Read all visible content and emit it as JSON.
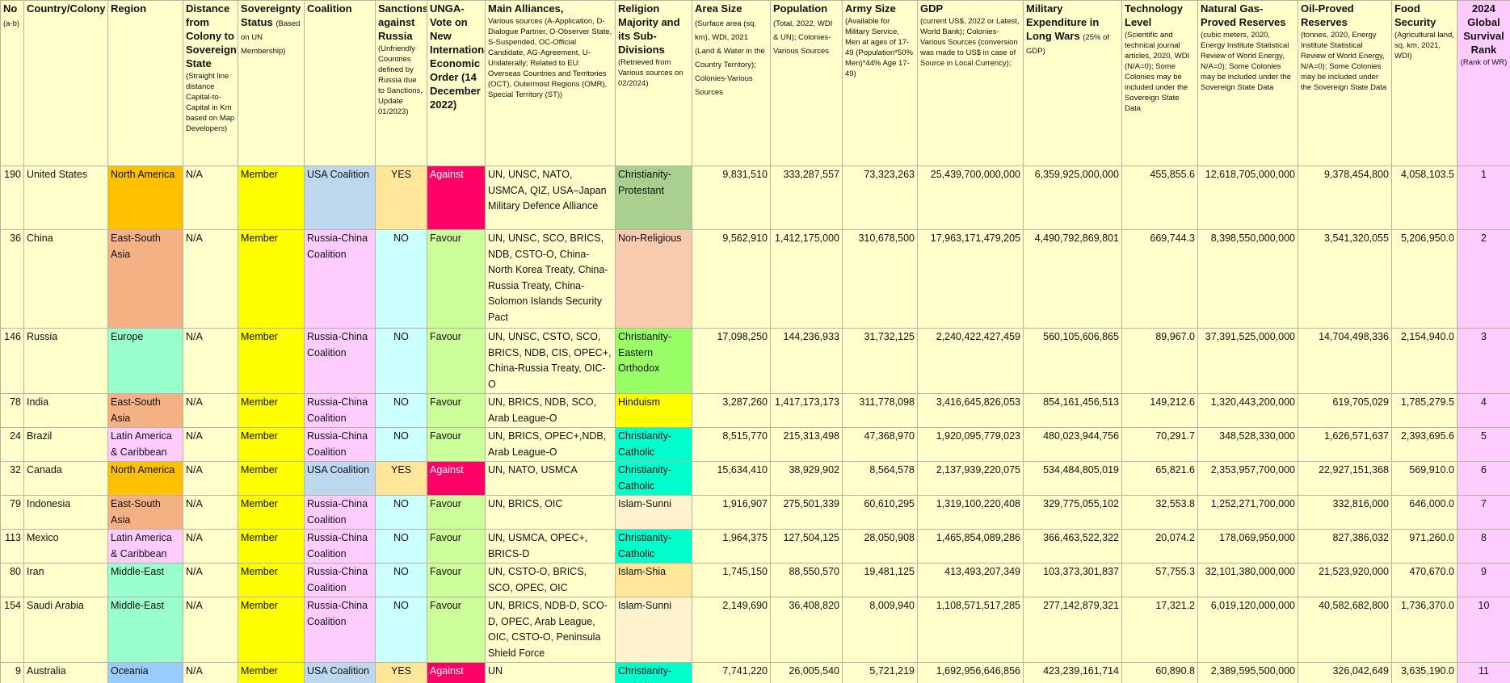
{
  "header": {
    "columns": [
      {
        "title": "No",
        "note": "(a-b)"
      },
      {
        "title": "Country/Colony"
      },
      {
        "title": "Region"
      },
      {
        "title": "Distance from Colony to Sovereign State",
        "note": "(Straight line distance Capital-to-Capital in Km based on Map Developers)"
      },
      {
        "title": "Sovereignty Status",
        "note": "(Based on UN Membership)"
      },
      {
        "title": "Coalition"
      },
      {
        "title": "Sanctions against Russia",
        "note": "(Unfriendly Countries defined by Russia due to Sanctions, Update 01/2023)"
      },
      {
        "title": "UNGA-Vote on New International Economic Order (14 December 2022)"
      },
      {
        "title": "Main Alliances,",
        "note": "Various sources (A-Application, D-Dialogue Partner, O-Observer State, S-Suspended, OC-Official Candidate, AG-Agreement, U-Unilaterally; Related to EU: Overseas Countries and Territories (OCT), Outermost Regions (OMR), Special Territory (ST))"
      },
      {
        "title": "Religion Majority and its Sub-Divisions",
        "note": "(Retrieved from Various sources on 02/2024)"
      },
      {
        "title": "Area Size",
        "note": "(Surface area (sq. km), WDI, 2021 (Land & Water in the Country Territory); Colonies-Various Sources"
      },
      {
        "title": "Population",
        "note": "(Total, 2022, WDI & UN); Colonies-Various Sources"
      },
      {
        "title": "Army Size",
        "note": "(Available for Military Service, Men at ages of 17-49 (Population*50% Men)*44% Age 17-49)"
      },
      {
        "title": "GDP",
        "note": "(current US$, 2022 or Latest, World Bank); Colonies-Various Sources (conversion was made to US$ in case of Source in Local Currency);"
      },
      {
        "title": "Military Expenditure in Long Wars",
        "note": "(25% of GDP)"
      },
      {
        "title": "Technology Level",
        "note": "(Scientific and technical journal articles, 2020, WDI (N/A=0); Some Colonies may be included under the Sovereign State Data"
      },
      {
        "title": "Natural Gas-Proved Reserves",
        "note": "(cubic meters, 2020, Energy Institute Statistical Review of World Energy, N/A=0); Some Colonies may be included under the Sovereign State Data"
      },
      {
        "title": "Oil-Proved Reserves",
        "note": "(tonnes, 2020, Energy Institute Statistical Review of World Energy, N/A=0); Some Colonies may be included under the Sovereign State Data"
      },
      {
        "title": "Food Security",
        "note": "(Agricultural land, sq. km, 2021, WDI)"
      },
      {
        "title": "2024 Global Survival Rank",
        "note": "(Rank of WR)",
        "fill": "#ffccff"
      }
    ]
  },
  "table": {
    "rows": [
      {
        "cells": [
          "190",
          "United States",
          "North America",
          "N/A",
          "Member",
          "USA Coalition",
          "YES",
          "Against",
          "UN, UNSC, NATO, USMCA, QIZ, USA–Japan Military Defence Alliance",
          "Christianity-Protestant",
          "9,831,510",
          "333,287,557",
          "73,323,263",
          "25,439,700,000,000",
          "6,359,925,000,000",
          "455,855.6",
          "12,618,705,000,000",
          "9,378,454,800",
          "4,058,103.5",
          "1"
        ],
        "fills": [
          null,
          null,
          "#ffc000",
          null,
          "#ffff00",
          "#bdd7ee",
          "#ffe699",
          "#ff0066",
          null,
          "#a9d08e",
          null,
          null,
          null,
          null,
          null,
          null,
          null,
          null,
          null,
          "#ffccff"
        ]
      },
      {
        "cells": [
          "36",
          "China",
          "East-South Asia",
          "N/A",
          "Member",
          "Russia-China Coalition",
          "NO",
          "Favour",
          "UN, UNSC, SCO, BRICS, NDB, CSTO-O, China-North Korea Treaty, China-Russia Treaty, China-Solomon Islands Security Pact",
          "Non-Religious",
          "9,562,910",
          "1,412,175,000",
          "310,678,500",
          "17,963,171,479,205",
          "4,490,792,869,801",
          "669,744.3",
          "8,398,550,000,000",
          "3,541,320,055",
          "5,206,950.0",
          "2"
        ],
        "fills": [
          null,
          null,
          "#f4b183",
          null,
          "#ffff00",
          "#ffccff",
          "#ccffff",
          "#ccff99",
          null,
          "#f8cbad",
          null,
          null,
          null,
          null,
          null,
          null,
          null,
          null,
          null,
          "#ffccff"
        ]
      },
      {
        "cells": [
          "146",
          "Russia",
          "Europe",
          "N/A",
          "Member",
          "Russia-China Coalition",
          "NO",
          "Favour",
          "UN, UNSC, CSTO, SCO, BRICS, NDB, CIS, OPEC+, China-Russia Treaty, OIC-O",
          "Christianity-Eastern Orthodox",
          "17,098,250",
          "144,236,933",
          "31,732,125",
          "2,240,422,427,459",
          "560,105,606,865",
          "89,967.0",
          "37,391,525,000,000",
          "14,704,498,336",
          "2,154,940.0",
          "3"
        ],
        "fills": [
          null,
          null,
          "#99ffcc",
          null,
          "#ffff00",
          "#ffccff",
          "#ccffff",
          "#ccff99",
          null,
          "#99ff66",
          null,
          null,
          null,
          null,
          null,
          null,
          null,
          null,
          null,
          "#ffccff"
        ]
      },
      {
        "cells": [
          "78",
          "India",
          "East-South Asia",
          "N/A",
          "Member",
          "Russia-China Coalition",
          "NO",
          "Favour",
          "UN, BRICS, NDB, SCO, Arab League-O",
          "Hinduism",
          "3,287,260",
          "1,417,173,173",
          "311,778,098",
          "3,416,645,826,053",
          "854,161,456,513",
          "149,212.6",
          "1,320,443,200,000",
          "619,705,029",
          "1,785,279.5",
          "4"
        ],
        "fills": [
          null,
          null,
          "#f4b183",
          null,
          "#ffff00",
          "#ffccff",
          "#ccffff",
          "#ccff99",
          null,
          "#ffff00",
          null,
          null,
          null,
          null,
          null,
          null,
          null,
          null,
          null,
          "#ffccff"
        ]
      },
      {
        "cells": [
          "24",
          "Brazil",
          "Latin America & Caribbean",
          "N/A",
          "Member",
          "Russia-China Coalition",
          "NO",
          "Favour",
          "UN, BRICS, OPEC+,NDB, Arab League-O",
          "Christianity-Catholic",
          "8,515,770",
          "215,313,498",
          "47,368,970",
          "1,920,095,779,023",
          "480,023,944,756",
          "70,291.7",
          "348,528,330,000",
          "1,626,571,637",
          "2,393,695.6",
          "5"
        ],
        "fills": [
          null,
          null,
          "#ffccff",
          null,
          "#ffff00",
          "#ffccff",
          "#ccffff",
          "#ccff99",
          null,
          "#00ffcc",
          null,
          null,
          null,
          null,
          null,
          null,
          null,
          null,
          null,
          "#ffccff"
        ]
      },
      {
        "cells": [
          "32",
          "Canada",
          "North America",
          "N/A",
          "Member",
          "USA Coalition",
          "YES",
          "Against",
          "UN, NATO, USMCA",
          "Christianity-Catholic",
          "15,634,410",
          "38,929,902",
          "8,564,578",
          "2,137,939,220,075",
          "534,484,805,019",
          "65,821.6",
          "2,353,957,700,000",
          "22,927,151,368",
          "569,910.0",
          "6"
        ],
        "fills": [
          null,
          null,
          "#ffc000",
          null,
          "#ffff00",
          "#bdd7ee",
          "#ffe699",
          "#ff0066",
          null,
          "#00ffcc",
          null,
          null,
          null,
          null,
          null,
          null,
          null,
          null,
          null,
          "#ffccff"
        ]
      },
      {
        "cells": [
          "79",
          "Indonesia",
          "East-South Asia",
          "N/A",
          "Member",
          "Russia-China Coalition",
          "NO",
          "Favour",
          "UN, BRICS, OIC",
          "Islam-Sunni",
          "1,916,907",
          "275,501,339",
          "60,610,295",
          "1,319,100,220,408",
          "329,775,055,102",
          "32,553.8",
          "1,252,271,700,000",
          "332,816,000",
          "646,000.0",
          "7"
        ],
        "fills": [
          null,
          null,
          "#f4b183",
          null,
          "#ffff00",
          "#ffccff",
          "#ccffff",
          "#ccff99",
          null,
          "#fff2cc",
          null,
          null,
          null,
          null,
          null,
          null,
          null,
          null,
          null,
          "#ffccff"
        ]
      },
      {
        "cells": [
          "113",
          "Mexico",
          "Latin America & Caribbean",
          "N/A",
          "Member",
          "Russia-China Coalition",
          "NO",
          "Favour",
          "UN, USMCA, OPEC+, BRICS-D",
          "Christianity-Catholic",
          "1,964,375",
          "127,504,125",
          "28,050,908",
          "1,465,854,089,286",
          "366,463,522,322",
          "20,074.2",
          "178,069,950,000",
          "827,386,032",
          "971,260.0",
          "8"
        ],
        "fills": [
          null,
          null,
          "#ffccff",
          null,
          "#ffff00",
          "#ffccff",
          "#ccffff",
          "#ccff99",
          null,
          "#00ffcc",
          null,
          null,
          null,
          null,
          null,
          null,
          null,
          null,
          null,
          "#ffccff"
        ]
      },
      {
        "cells": [
          "80",
          "Iran",
          "Middle-East",
          "N/A",
          "Member",
          "Russia-China Coalition",
          "NO",
          "Favour",
          "UN, CSTO-O, BRICS, SCO, OPEC, OIC",
          "Islam-Shia",
          "1,745,150",
          "88,550,570",
          "19,481,125",
          "413,493,207,349",
          "103,373,301,837",
          "57,755.3",
          "32,101,380,000,000",
          "21,523,920,000",
          "470,670.0",
          "9"
        ],
        "fills": [
          null,
          null,
          "#99ffcc",
          null,
          "#ffff00",
          "#ffccff",
          "#ccffff",
          "#ccff99",
          null,
          "#ffe699",
          null,
          null,
          null,
          null,
          null,
          null,
          null,
          null,
          null,
          "#ffccff"
        ]
      },
      {
        "cells": [
          "154",
          "Saudi Arabia",
          "Middle-East",
          "N/A",
          "Member",
          "Russia-China Coalition",
          "NO",
          "Favour",
          "UN, BRICS, NDB-D, SCO-D, OPEC, Arab League, OIC, CSTO-O, Peninsula Shield Force",
          "Islam-Sunni",
          "2,149,690",
          "36,408,820",
          "8,009,940",
          "1,108,571,517,285",
          "277,142,879,321",
          "17,321.2",
          "6,019,120,000,000",
          "40,582,682,800",
          "1,736,370.0",
          "10"
        ],
        "fills": [
          null,
          null,
          "#99ffcc",
          null,
          "#ffff00",
          "#ffccff",
          "#ccffff",
          "#ccff99",
          null,
          "#fff2cc",
          null,
          null,
          null,
          null,
          null,
          null,
          null,
          null,
          null,
          "#ffccff"
        ]
      },
      {
        "cells": [
          "9",
          "Australia",
          "Oceania",
          "N/A",
          "Member",
          "USA Coalition",
          "YES",
          "Against",
          "UN",
          "Christianity-Catholic",
          "7,741,220",
          "26,005,540",
          "5,721,219",
          "1,692,956,646,856",
          "423,239,161,714",
          "60,890.8",
          "2,389,595,500,000",
          "326,042,649",
          "3,635,190.0",
          "11"
        ],
        "fills": [
          null,
          null,
          "#99ccff",
          null,
          "#ffff00",
          "#bdd7ee",
          "#ffe699",
          "#ff0066",
          null,
          "#00ffcc",
          null,
          null,
          null,
          null,
          null,
          null,
          null,
          null,
          null,
          "#ffccff"
        ]
      }
    ]
  }
}
